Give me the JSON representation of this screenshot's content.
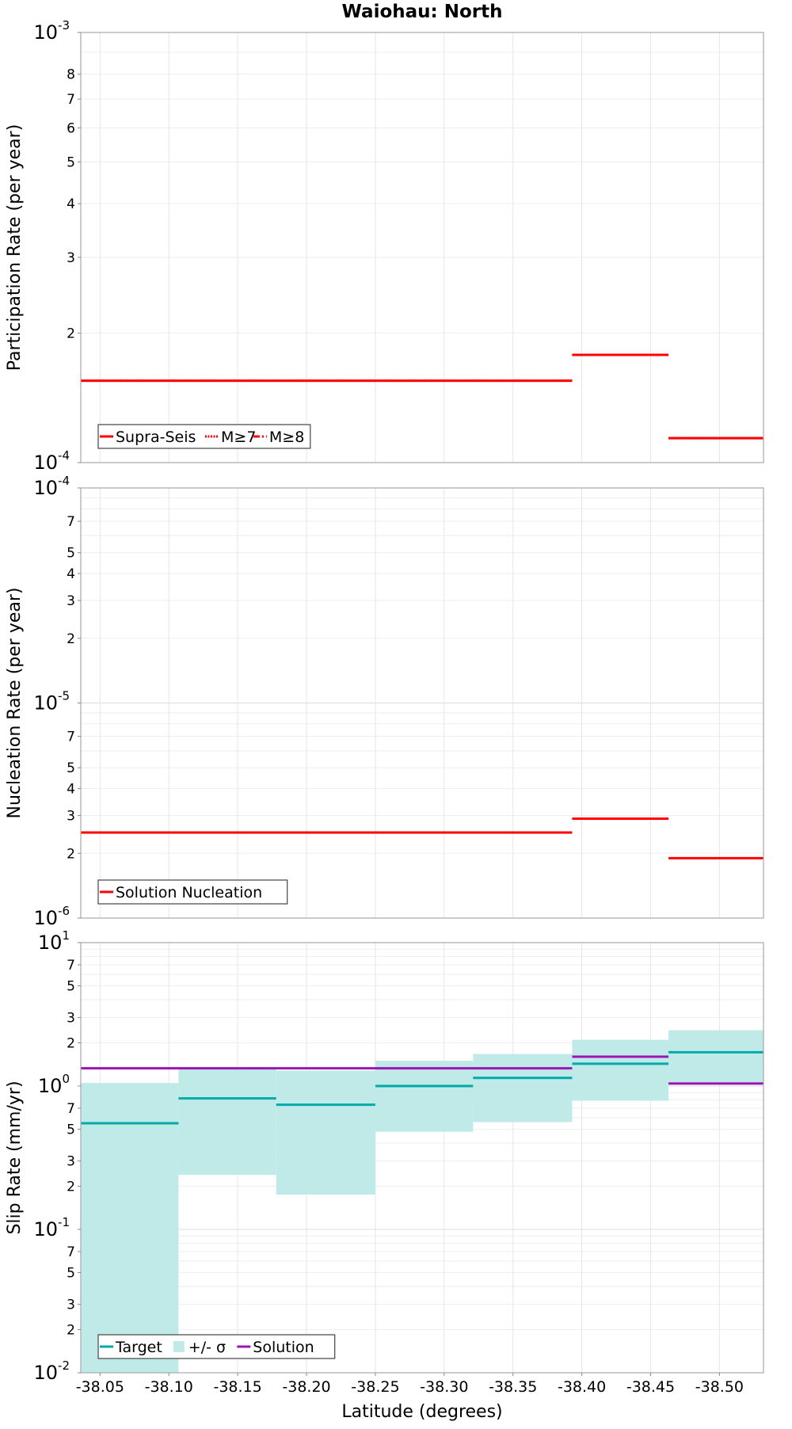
{
  "chart_data": [
    {
      "type": "line",
      "title": "Waiohau: North",
      "ylabel": "Participation Rate (per year)",
      "xlabel": "",
      "x_range": [
        -38.036,
        -38.532
      ],
      "y_scale": "log",
      "ylim": [
        0.0001,
        0.001
      ],
      "y_ticks": [
        {
          "value": 0.001,
          "base": "10",
          "exp": "-3"
        },
        {
          "value": 0.0008,
          "label": "8"
        },
        {
          "value": 0.0007,
          "label": "7"
        },
        {
          "value": 0.0006,
          "label": "6"
        },
        {
          "value": 0.0005,
          "label": "5"
        },
        {
          "value": 0.0004,
          "label": "4"
        },
        {
          "value": 0.0003,
          "label": "3"
        },
        {
          "value": 0.0002,
          "label": "2"
        },
        {
          "value": 0.0001,
          "base": "10",
          "exp": "-4"
        }
      ],
      "series": [
        {
          "name": "Supra-Seis",
          "style": "solid",
          "color": "#ff0000",
          "segments": [
            [
              -38.036,
              -38.393,
              0.000155
            ],
            [
              -38.393,
              -38.463,
              0.000178
            ],
            [
              -38.463,
              -38.532,
              0.000114
            ]
          ]
        },
        {
          "name": "M≥7",
          "style": "dotted",
          "color": "#ff0000",
          "segments": [
            [
              -38.036,
              -38.393,
              0.000155
            ],
            [
              -38.393,
              -38.463,
              0.000178
            ],
            [
              -38.463,
              -38.532,
              0.000114
            ]
          ]
        },
        {
          "name": "M≥8",
          "style": "dashdot",
          "color": "#ff0000",
          "segments": []
        }
      ],
      "legend": [
        "Supra-Seis",
        "M≥7",
        "M≥8"
      ]
    },
    {
      "type": "line",
      "title": "",
      "ylabel": "Nucleation Rate (per year)",
      "xlabel": "",
      "x_range": [
        -38.036,
        -38.532
      ],
      "y_scale": "log",
      "ylim": [
        1e-06,
        0.0001
      ],
      "y_ticks": [
        {
          "value": 0.0001,
          "base": "10",
          "exp": "-4"
        },
        {
          "value": 7e-05,
          "label": "7"
        },
        {
          "value": 5e-05,
          "label": "5"
        },
        {
          "value": 4e-05,
          "label": "4"
        },
        {
          "value": 3e-05,
          "label": "3"
        },
        {
          "value": 2e-05,
          "label": "2"
        },
        {
          "value": 1e-05,
          "base": "10",
          "exp": "-5"
        },
        {
          "value": 7e-06,
          "label": "7"
        },
        {
          "value": 5e-06,
          "label": "5"
        },
        {
          "value": 4e-06,
          "label": "4"
        },
        {
          "value": 3e-06,
          "label": "3"
        },
        {
          "value": 2e-06,
          "label": "2"
        },
        {
          "value": 1e-06,
          "base": "10",
          "exp": "-6"
        }
      ],
      "series": [
        {
          "name": "Solution Nucleation",
          "style": "solid",
          "color": "#ff0000",
          "segments": [
            [
              -38.036,
              -38.393,
              2.5e-06
            ],
            [
              -38.393,
              -38.463,
              2.9e-06
            ],
            [
              -38.463,
              -38.532,
              1.9e-06
            ]
          ]
        }
      ],
      "legend": [
        "Solution Nucleation"
      ]
    },
    {
      "type": "line",
      "title": "",
      "ylabel": "Slip Rate (mm/yr)",
      "xlabel": "Latitude (degrees)",
      "x_range": [
        -38.036,
        -38.532
      ],
      "y_scale": "log",
      "ylim": [
        0.01,
        10
      ],
      "y_ticks": [
        {
          "value": 10,
          "base": "10",
          "exp": "1"
        },
        {
          "value": 7,
          "label": "7"
        },
        {
          "value": 5,
          "label": "5"
        },
        {
          "value": 3,
          "label": "3"
        },
        {
          "value": 2,
          "label": "2"
        },
        {
          "value": 1,
          "base": "10",
          "exp": "0"
        },
        {
          "value": 0.7,
          "label": "7"
        },
        {
          "value": 0.5,
          "label": "5"
        },
        {
          "value": 0.3,
          "label": "3"
        },
        {
          "value": 0.2,
          "label": "2"
        },
        {
          "value": 0.1,
          "base": "10",
          "exp": "-1"
        },
        {
          "value": 0.07,
          "label": "7"
        },
        {
          "value": 0.05,
          "label": "5"
        },
        {
          "value": 0.03,
          "label": "3"
        },
        {
          "value": 0.02,
          "label": "2"
        },
        {
          "value": 0.01,
          "base": "10",
          "exp": "-2"
        }
      ],
      "sigma_band": {
        "name": "+/- σ",
        "color": "#bfeae8",
        "segments": [
          [
            -38.036,
            -38.107,
            0.01,
            1.05
          ],
          [
            -38.107,
            -38.178,
            0.24,
            1.35
          ],
          [
            -38.178,
            -38.25,
            0.175,
            1.28
          ],
          [
            -38.25,
            -38.321,
            0.48,
            1.5
          ],
          [
            -38.321,
            -38.393,
            0.56,
            1.67
          ],
          [
            -38.393,
            -38.463,
            0.79,
            2.1
          ],
          [
            -38.463,
            -38.532,
            1.03,
            2.45
          ]
        ]
      },
      "series": [
        {
          "name": "Target",
          "style": "solid",
          "color": "#00aaaa",
          "segments": [
            [
              -38.036,
              -38.107,
              0.55
            ],
            [
              -38.107,
              -38.178,
              0.82
            ],
            [
              -38.178,
              -38.25,
              0.74
            ],
            [
              -38.25,
              -38.321,
              1.0
            ],
            [
              -38.321,
              -38.393,
              1.14
            ],
            [
              -38.393,
              -38.463,
              1.43
            ],
            [
              -38.463,
              -38.532,
              1.72
            ]
          ]
        },
        {
          "name": "Solution",
          "style": "solid",
          "color": "#9b14b4",
          "segments": [
            [
              -38.036,
              -38.393,
              1.33
            ],
            [
              -38.393,
              -38.463,
              1.6
            ],
            [
              -38.463,
              -38.532,
              1.04
            ]
          ]
        }
      ],
      "legend": [
        "Target",
        "+/- σ",
        "Solution"
      ]
    }
  ],
  "x_ticks": [
    {
      "value": -38.05,
      "label": "-38.05"
    },
    {
      "value": -38.1,
      "label": "-38.10"
    },
    {
      "value": -38.15,
      "label": "-38.15"
    },
    {
      "value": -38.2,
      "label": "-38.20"
    },
    {
      "value": -38.25,
      "label": "-38.25"
    },
    {
      "value": -38.3,
      "label": "-38.30"
    },
    {
      "value": -38.35,
      "label": "-38.35"
    },
    {
      "value": -38.4,
      "label": "-38.40"
    },
    {
      "value": -38.45,
      "label": "-38.45"
    },
    {
      "value": -38.5,
      "label": "-38.50"
    }
  ]
}
